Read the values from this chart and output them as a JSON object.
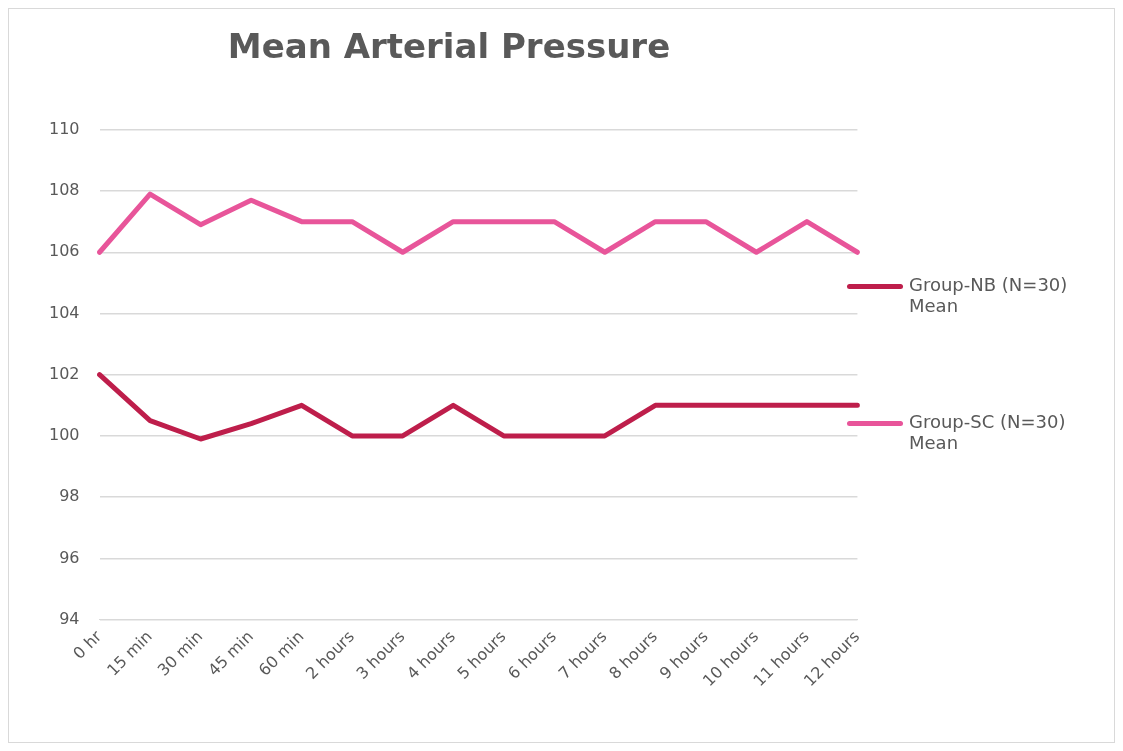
{
  "chart_data": {
    "type": "line",
    "title": "Mean Arterial Pressure",
    "categories": [
      "0 hr",
      "15 min",
      "30 min",
      "45 min",
      "60 min",
      "2 hours",
      "3 hours",
      "4 hours",
      "5 hours",
      "6 hours",
      "7 hours",
      "8 hours",
      "9 hours",
      "10 hours",
      "11 hours",
      "12 hours"
    ],
    "series": [
      {
        "name": "Group-NB (N=30) Mean",
        "color": "#be1e4b",
        "values": [
          102,
          100.5,
          99.9,
          100.4,
          101,
          100,
          100,
          101,
          100,
          100,
          100,
          101,
          101,
          101,
          101,
          101
        ]
      },
      {
        "name": "Group-SC (N=30) Mean",
        "color": "#e8559a",
        "values": [
          106,
          107.9,
          106.9,
          107.7,
          107,
          107,
          106,
          107,
          107,
          107,
          106,
          107,
          107,
          106,
          107,
          106
        ]
      }
    ],
    "ylim": [
      94,
      110
    ],
    "yticks": [
      94,
      96,
      98,
      100,
      102,
      104,
      106,
      108,
      110
    ],
    "grid": "y",
    "legend": "right",
    "marker": "none",
    "line_style": "solid"
  }
}
